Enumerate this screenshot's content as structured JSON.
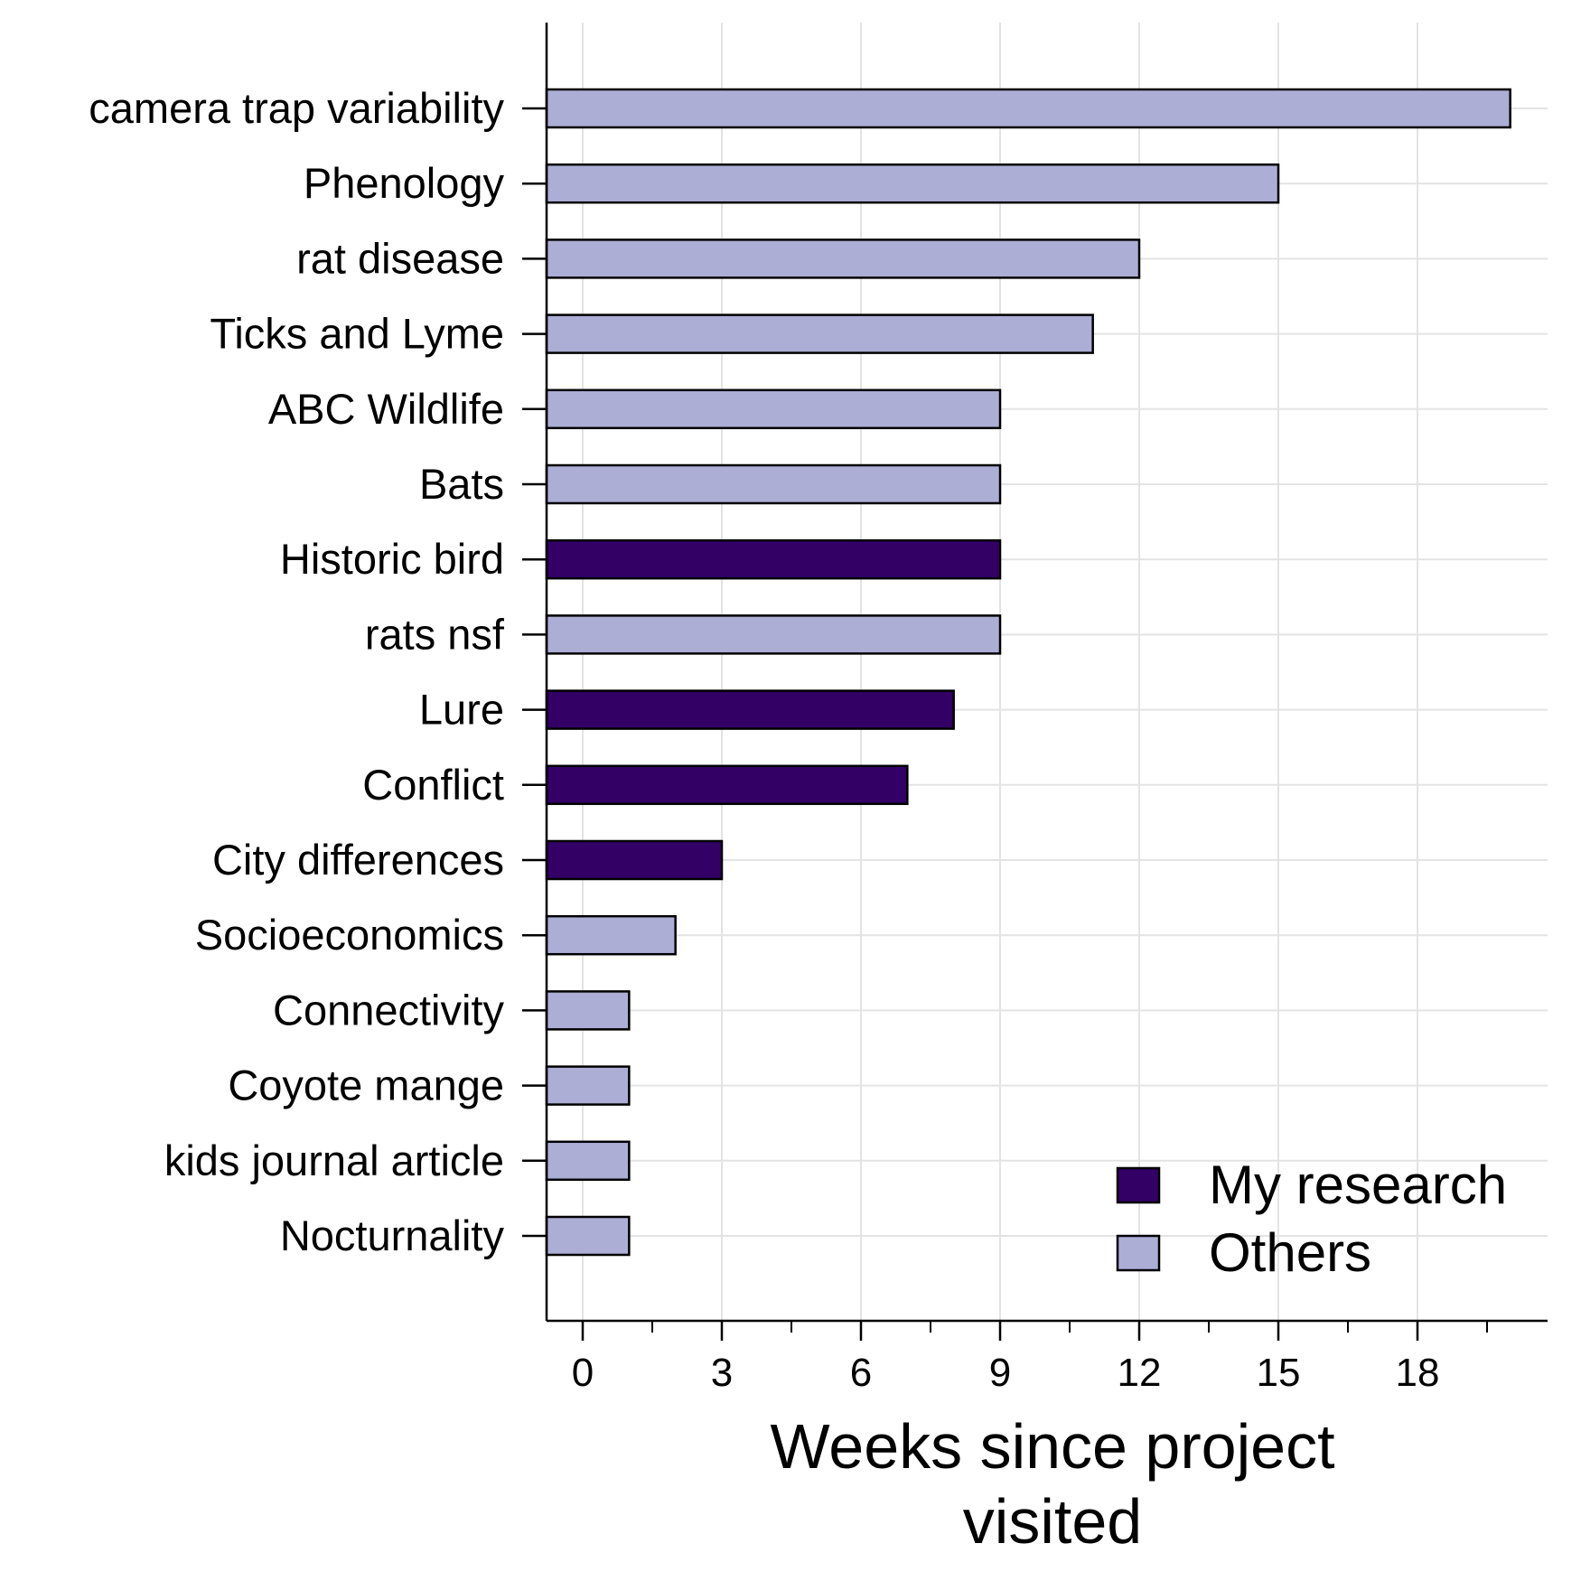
{
  "chart_data": {
    "type": "bar",
    "orientation": "horizontal",
    "categories": [
      "camera trap variability",
      "Phenology",
      "rat disease",
      "Ticks and Lyme",
      "ABC Wildlife",
      "Bats",
      "Historic bird",
      "rats nsf",
      "Lure",
      "Conflict",
      "City differences",
      "Socioeconomics",
      "Connectivity",
      "Coyote mange",
      "kids journal article",
      "Nocturnality"
    ],
    "values": [
      20,
      15,
      12,
      11,
      9,
      9,
      9,
      9,
      8,
      7,
      3,
      2,
      1,
      1,
      1,
      1
    ],
    "groups": [
      "Others",
      "Others",
      "Others",
      "Others",
      "Others",
      "Others",
      "My research",
      "Others",
      "My research",
      "My research",
      "My research",
      "Others",
      "Others",
      "Others",
      "Others",
      "Others"
    ],
    "series": [
      {
        "name": "My research",
        "color": "#330066"
      },
      {
        "name": "Others",
        "color": "#adaed6"
      }
    ],
    "title": "",
    "xlabel_lines": [
      "Weeks since project",
      "visited"
    ],
    "ylabel": "",
    "xlim": [
      -0.8,
      20.8
    ],
    "xticks": [
      0,
      3,
      6,
      9,
      12,
      15,
      18
    ],
    "xtick_labels": [
      "0",
      "3",
      "6",
      "9",
      "12",
      "15",
      "18"
    ],
    "minor_xticks": [
      1.5,
      4.5,
      7.5,
      10.5,
      13.5,
      16.5,
      19.5
    ],
    "grid": true,
    "grid_color": "#e3e3e3",
    "legend_position": "bottom-right"
  }
}
